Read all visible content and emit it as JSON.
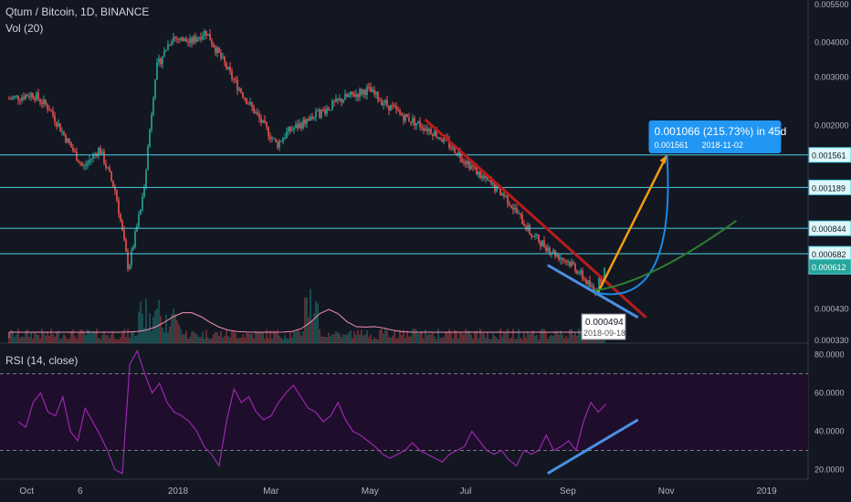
{
  "header": {
    "symbol": "Qtum / Bitcoin, 1D, BINANCE",
    "volume_label": "Vol (20)",
    "rsi_label": "RSI (14, close)"
  },
  "colors": {
    "background": "#131722",
    "up": "#26a69a",
    "down": "#ef5350",
    "level_line": "#4dd0e1",
    "downtrend": "#b71c1c",
    "support": "#4a90e2",
    "target_arrow": "#f39c12",
    "projection_curve": "#1e88e5",
    "green_curve": "#2e7d32",
    "rsi_line": "#9c27b0",
    "rsi_band": "#1e0d2b",
    "callout": "#2196f3"
  },
  "chart_data": [
    {
      "type": "candlestick",
      "title": "Qtum / Bitcoin, 1D, BINANCE",
      "y_scale": "log",
      "ylim": [
        0.00033,
        0.0055
      ],
      "y_ticks": [
        "0.005500",
        "0.004000",
        "0.003000",
        "0.002000",
        "0.000844",
        "0.000430",
        "0.000330"
      ],
      "x_ticks": [
        "Oct",
        "6",
        "2018",
        "Mar",
        "May",
        "Jul",
        "Sep",
        "Nov",
        "2019"
      ],
      "price_path": [
        [
          "2017-09-20",
          0.0025
        ],
        [
          "2017-10-05",
          0.0026
        ],
        [
          "2017-10-15",
          0.0023
        ],
        [
          "2017-10-25",
          0.0018
        ],
        [
          "2017-11-05",
          0.0014
        ],
        [
          "2017-11-15",
          0.00165
        ],
        [
          "2017-11-25",
          0.00115
        ],
        [
          "2017-12-03",
          0.0006
        ],
        [
          "2017-12-12",
          0.0011
        ],
        [
          "2017-12-20",
          0.0032
        ],
        [
          "2017-12-30",
          0.0042
        ],
        [
          "2018-01-10",
          0.004
        ],
        [
          "2018-01-20",
          0.0044
        ],
        [
          "2018-02-05",
          0.003
        ],
        [
          "2018-02-20",
          0.0022
        ],
        [
          "2018-03-05",
          0.0017
        ],
        [
          "2018-03-12",
          0.0019
        ],
        [
          "2018-03-25",
          0.0021
        ],
        [
          "2018-04-15",
          0.0025
        ],
        [
          "2018-04-30",
          0.0027
        ],
        [
          "2018-05-20",
          0.0022
        ],
        [
          "2018-06-10",
          0.0019
        ],
        [
          "2018-06-25",
          0.0016
        ],
        [
          "2018-07-10",
          0.0013
        ],
        [
          "2018-07-25",
          0.0011
        ],
        [
          "2018-08-10",
          0.0008
        ],
        [
          "2018-08-25",
          0.00068
        ],
        [
          "2018-09-05",
          0.00062
        ],
        [
          "2018-09-18",
          0.000494
        ],
        [
          "2018-09-25",
          0.00061
        ]
      ],
      "horizontal_levels": [
        0.001561,
        0.001189,
        0.000844,
        0.000682
      ],
      "level_labels": [
        "0.001561",
        "0.001189",
        "0.000844",
        "0.000682",
        "0.000612"
      ],
      "current_price": 0.000612,
      "annotations": {
        "target": {
          "value": 0.001561,
          "date": "2018-11-02",
          "label": "0.001066 (215.73%) in 45d",
          "sublabel": "0.001561",
          "subdate": "2018-11-02"
        },
        "low": {
          "value": "0.000494",
          "date": "2018-09-18"
        },
        "downtrend_line": [
          [
            "2018-06-05",
            0.0021
          ],
          [
            "2018-10-20",
            0.0004
          ]
        ],
        "support_line": [
          [
            "2018-08-20",
            0.00062
          ],
          [
            "2018-10-15",
            0.0004
          ]
        ],
        "green_curve_end": [
          "2018-12-15",
          0.0009
        ]
      }
    },
    {
      "type": "line",
      "title": "RSI (14, close)",
      "ylim": [
        15,
        85
      ],
      "y_ticks": [
        "80.0000",
        "60.0000",
        "40.0000",
        "20.0000"
      ],
      "bands": [
        30,
        70
      ],
      "series": [
        {
          "values": [
            45,
            42,
            55,
            60,
            50,
            48,
            58,
            40,
            35,
            52,
            45,
            38,
            30,
            20,
            18,
            75,
            82,
            70,
            60,
            65,
            55,
            50,
            48,
            45,
            40,
            32,
            28,
            22,
            45,
            62,
            55,
            58,
            50,
            46,
            48,
            55,
            60,
            64,
            58,
            52,
            50,
            45,
            48,
            55,
            46,
            40,
            38,
            35,
            32,
            28,
            26,
            28,
            30,
            34,
            30,
            28,
            26,
            24,
            28,
            30,
            32,
            40,
            35,
            30,
            28,
            30,
            25,
            22,
            30,
            28,
            30,
            38,
            30,
            32,
            35,
            30,
            45,
            55,
            50,
            54
          ]
        }
      ],
      "trend_line": [
        [
          "2018-08-20",
          18
        ],
        [
          "2018-10-15",
          46
        ]
      ]
    }
  ]
}
